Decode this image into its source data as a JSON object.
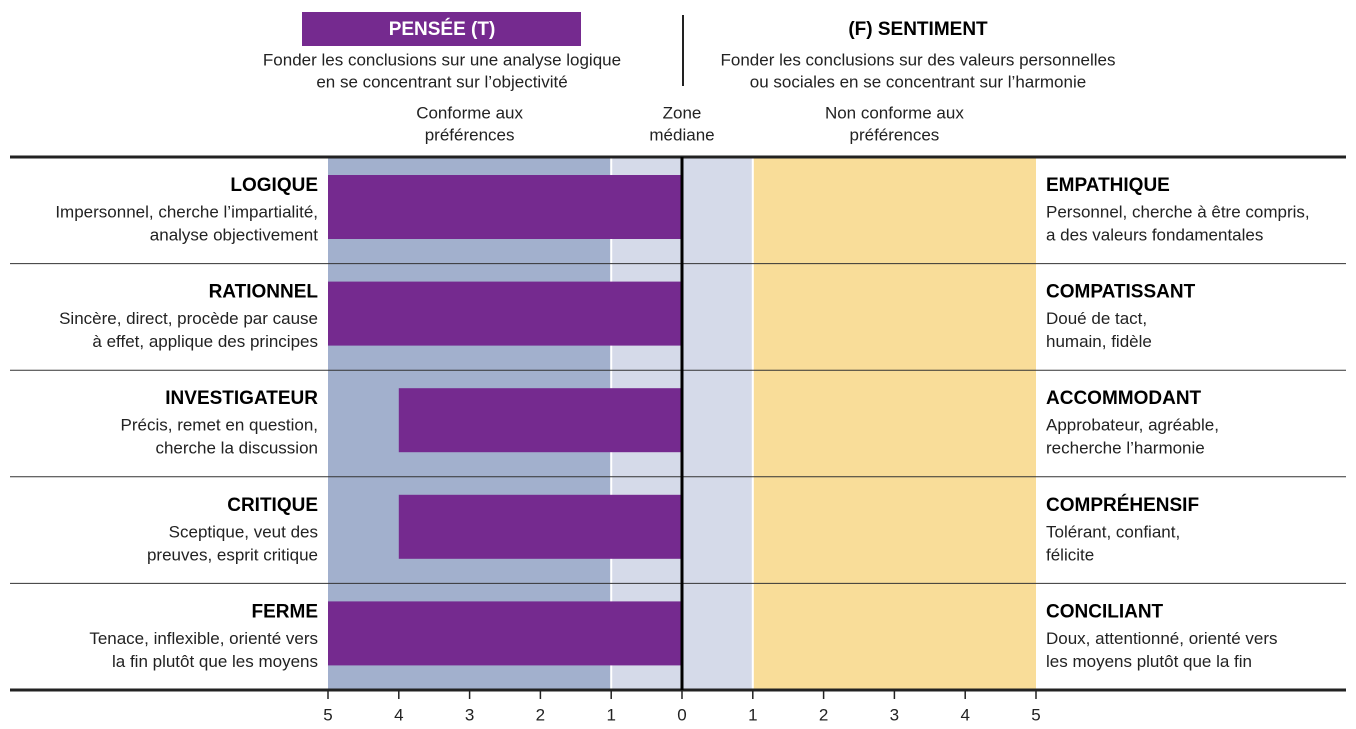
{
  "chart_data": {
    "type": "bar",
    "orientation": "horizontal",
    "left_pole": {
      "title": "PENSÉE (T)",
      "description": [
        "Fonder les conclusions sur une analyse logique",
        "en se concentrant sur l’objectivité"
      ],
      "color": "#752a8f"
    },
    "right_pole": {
      "title": "(F) SENTIMENT",
      "description": [
        "Fonder les conclusions sur des valeurs personnelles",
        "ou sociales en se concentrant sur l’harmonie"
      ]
    },
    "zones": [
      {
        "label": [
          "Conforme aux",
          "préférences"
        ],
        "range": [
          -5,
          -1
        ],
        "color": "#a2b0cd"
      },
      {
        "label": [
          "Zone",
          "médiane"
        ],
        "range": [
          -1,
          1
        ],
        "color": "#d5dae9"
      },
      {
        "label": [
          "Non conforme aux",
          "préférences"
        ],
        "range": [
          1,
          5
        ],
        "color": "#f9dd99"
      }
    ],
    "categories": [
      "LOGIQUE",
      "RATIONNEL",
      "INVESTIGATEUR",
      "CRITIQUE",
      "FERME"
    ],
    "left_descriptions": [
      [
        "Impersonnel, cherche l’impartialité,",
        "analyse objectivement"
      ],
      [
        "Sincère, direct, procède par cause",
        "à effet, applique des principes"
      ],
      [
        "Précis, remet en question,",
        "cherche la discussion"
      ],
      [
        "Sceptique, veut des",
        "preuves, esprit critique"
      ],
      [
        "Tenace, inflexible, orienté vers",
        "la fin plutôt que les moyens"
      ]
    ],
    "right_categories": [
      "EMPATHIQUE",
      "COMPATISSANT",
      "ACCOMMODANT",
      "COMPRÉHENSIF",
      "CONCILIANT"
    ],
    "right_descriptions": [
      [
        "Personnel, cherche à être compris,",
        "a des valeurs fondamentales"
      ],
      [
        "Doué de tact,",
        "humain, fidèle"
      ],
      [
        "Approbateur, agréable,",
        "recherche l’harmonie"
      ],
      [
        "Tolérant, confiant,",
        "félicite"
      ],
      [
        "Doux, attentionné, orienté vers",
        "les moyens plutôt que la fin"
      ]
    ],
    "values": [
      -5,
      -5,
      -4,
      -4,
      -5
    ],
    "color": "#752a8f",
    "xlim": [
      -5,
      5
    ],
    "xticks": [
      {
        "value": -5,
        "label": "5"
      },
      {
        "value": -4,
        "label": "4"
      },
      {
        "value": -3,
        "label": "3"
      },
      {
        "value": -2,
        "label": "2"
      },
      {
        "value": -1,
        "label": "1"
      },
      0,
      1,
      2,
      3,
      4,
      5
    ],
    "grid": false
  }
}
